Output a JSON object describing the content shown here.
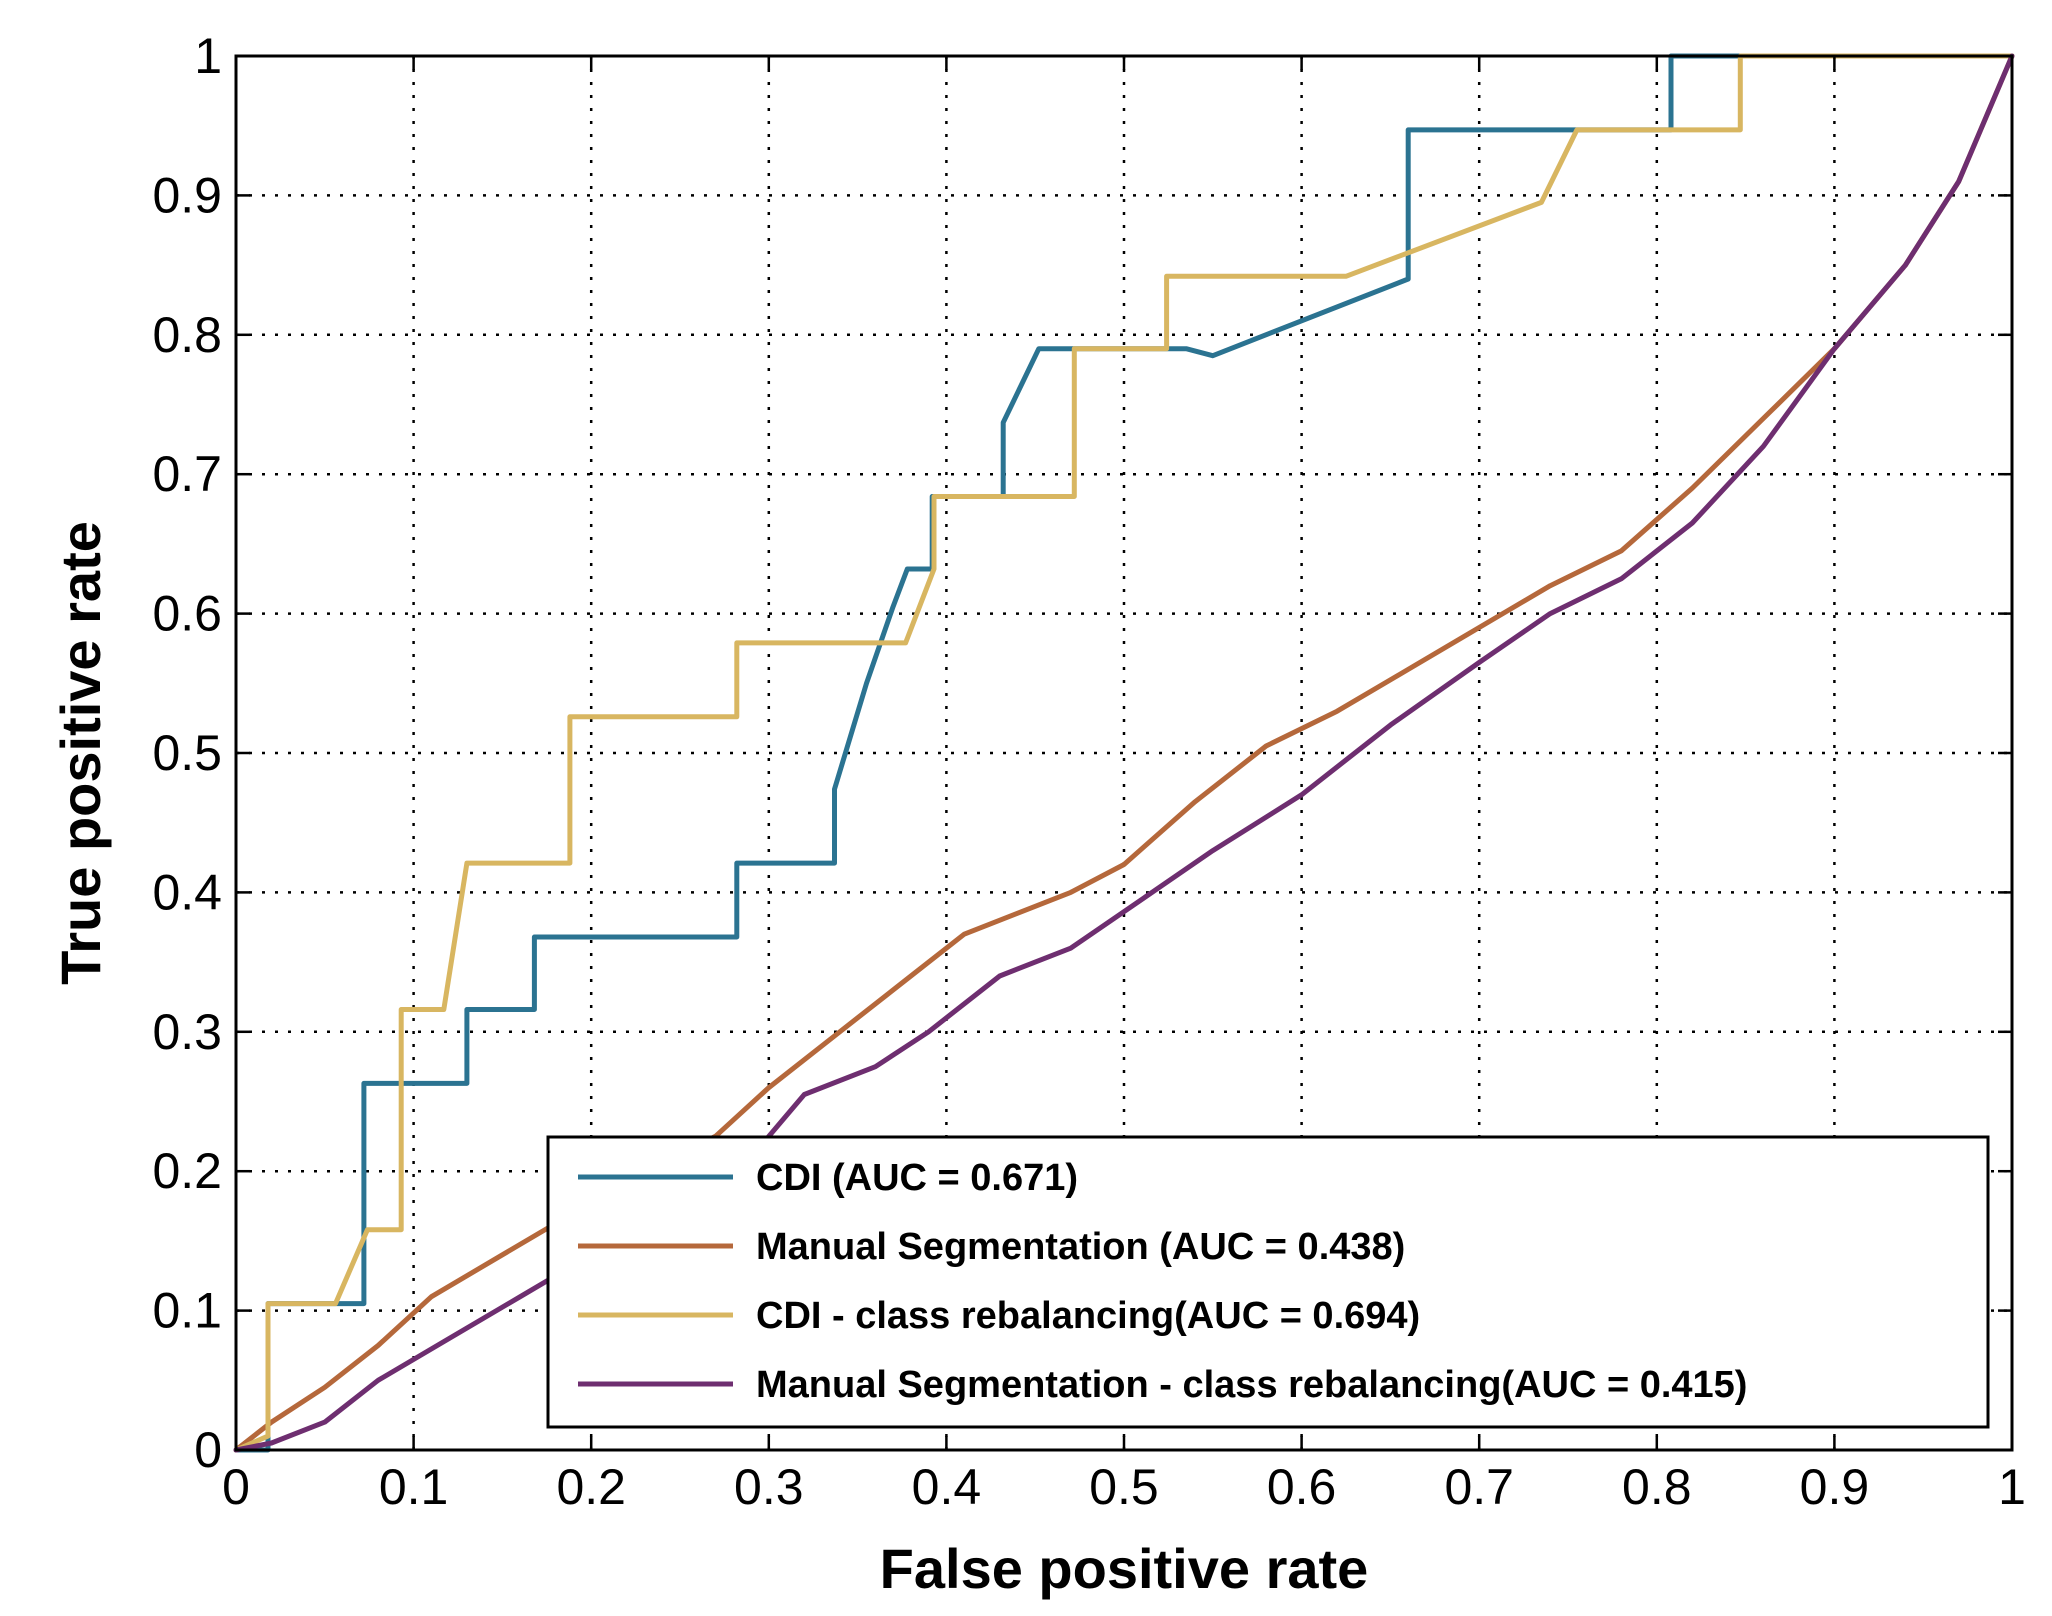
{
  "chart_data": {
    "type": "line",
    "title": "",
    "xlabel": "False positive rate",
    "ylabel": "True positive rate",
    "xlim": [
      0,
      1
    ],
    "ylim": [
      0,
      1
    ],
    "grid": true,
    "xticks": [
      "0",
      "0.1",
      "0.2",
      "0.3",
      "0.4",
      "0.5",
      "0.6",
      "0.7",
      "0.8",
      "0.9",
      "1"
    ],
    "yticks": [
      "0",
      "0.1",
      "0.2",
      "0.3",
      "0.4",
      "0.5",
      "0.6",
      "0.7",
      "0.8",
      "0.9",
      "1"
    ],
    "legend_position": "bottom-right",
    "series": [
      {
        "name": "CDI (AUC = 0.671)",
        "color": "#2b7391",
        "points": [
          [
            0,
            0
          ],
          [
            0.018,
            0
          ],
          [
            0.018,
            0.105
          ],
          [
            0.072,
            0.105
          ],
          [
            0.072,
            0.158
          ],
          [
            0.072,
            0.263
          ],
          [
            0.13,
            0.263
          ],
          [
            0.13,
            0.316
          ],
          [
            0.168,
            0.316
          ],
          [
            0.168,
            0.368
          ],
          [
            0.282,
            0.368
          ],
          [
            0.282,
            0.421
          ],
          [
            0.337,
            0.421
          ],
          [
            0.337,
            0.474
          ],
          [
            0.355,
            0.55
          ],
          [
            0.37,
            0.605
          ],
          [
            0.378,
            0.632
          ],
          [
            0.392,
            0.632
          ],
          [
            0.392,
            0.684
          ],
          [
            0.432,
            0.684
          ],
          [
            0.432,
            0.737
          ],
          [
            0.452,
            0.79
          ],
          [
            0.535,
            0.79
          ],
          [
            0.55,
            0.785
          ],
          [
            0.66,
            0.84
          ],
          [
            0.66,
            0.947
          ],
          [
            0.808,
            0.947
          ],
          [
            0.808,
            1
          ],
          [
            0.85,
            1
          ],
          [
            1,
            1
          ]
        ]
      },
      {
        "name": "Manual Segmentation (AUC = 0.438)",
        "color": "#b5683b",
        "points": [
          [
            0,
            0
          ],
          [
            0.02,
            0.02
          ],
          [
            0.05,
            0.045
          ],
          [
            0.08,
            0.075
          ],
          [
            0.11,
            0.11
          ],
          [
            0.15,
            0.14
          ],
          [
            0.19,
            0.17
          ],
          [
            0.23,
            0.2
          ],
          [
            0.27,
            0.225
          ],
          [
            0.3,
            0.26
          ],
          [
            0.34,
            0.3
          ],
          [
            0.38,
            0.34
          ],
          [
            0.41,
            0.37
          ],
          [
            0.44,
            0.385
          ],
          [
            0.47,
            0.4
          ],
          [
            0.5,
            0.42
          ],
          [
            0.54,
            0.465
          ],
          [
            0.58,
            0.505
          ],
          [
            0.62,
            0.53
          ],
          [
            0.66,
            0.56
          ],
          [
            0.7,
            0.59
          ],
          [
            0.74,
            0.62
          ],
          [
            0.78,
            0.645
          ],
          [
            0.82,
            0.69
          ],
          [
            0.86,
            0.74
          ],
          [
            0.9,
            0.79
          ],
          [
            0.94,
            0.85
          ],
          [
            0.97,
            0.91
          ],
          [
            1,
            1
          ]
        ]
      },
      {
        "name": "CDI - class rebalancing(AUC = 0.694)",
        "color": "#d8b661",
        "points": [
          [
            0,
            0
          ],
          [
            0.018,
            0.01
          ],
          [
            0.018,
            0.105
          ],
          [
            0.056,
            0.105
          ],
          [
            0.074,
            0.158
          ],
          [
            0.093,
            0.158
          ],
          [
            0.093,
            0.316
          ],
          [
            0.117,
            0.316
          ],
          [
            0.13,
            0.421
          ],
          [
            0.188,
            0.421
          ],
          [
            0.188,
            0.526
          ],
          [
            0.282,
            0.526
          ],
          [
            0.282,
            0.579
          ],
          [
            0.377,
            0.579
          ],
          [
            0.393,
            0.632
          ],
          [
            0.393,
            0.684
          ],
          [
            0.472,
            0.684
          ],
          [
            0.472,
            0.79
          ],
          [
            0.524,
            0.79
          ],
          [
            0.524,
            0.842
          ],
          [
            0.625,
            0.842
          ],
          [
            0.735,
            0.895
          ],
          [
            0.755,
            0.947
          ],
          [
            0.847,
            0.947
          ],
          [
            0.847,
            1
          ],
          [
            1,
            1
          ]
        ]
      },
      {
        "name": "Manual Segmentation - class rebalancing(AUC = 0.415)",
        "color": "#6e2e70",
        "points": [
          [
            0,
            0
          ],
          [
            0.02,
            0.005
          ],
          [
            0.05,
            0.02
          ],
          [
            0.08,
            0.05
          ],
          [
            0.12,
            0.08
          ],
          [
            0.16,
            0.11
          ],
          [
            0.2,
            0.14
          ],
          [
            0.25,
            0.17
          ],
          [
            0.29,
            0.21
          ],
          [
            0.32,
            0.255
          ],
          [
            0.36,
            0.275
          ],
          [
            0.39,
            0.3
          ],
          [
            0.43,
            0.34
          ],
          [
            0.47,
            0.36
          ],
          [
            0.51,
            0.395
          ],
          [
            0.55,
            0.43
          ],
          [
            0.6,
            0.47
          ],
          [
            0.65,
            0.52
          ],
          [
            0.7,
            0.565
          ],
          [
            0.74,
            0.6
          ],
          [
            0.78,
            0.625
          ],
          [
            0.82,
            0.665
          ],
          [
            0.86,
            0.72
          ],
          [
            0.9,
            0.79
          ],
          [
            0.94,
            0.85
          ],
          [
            0.97,
            0.91
          ],
          [
            1,
            1
          ]
        ]
      }
    ]
  }
}
